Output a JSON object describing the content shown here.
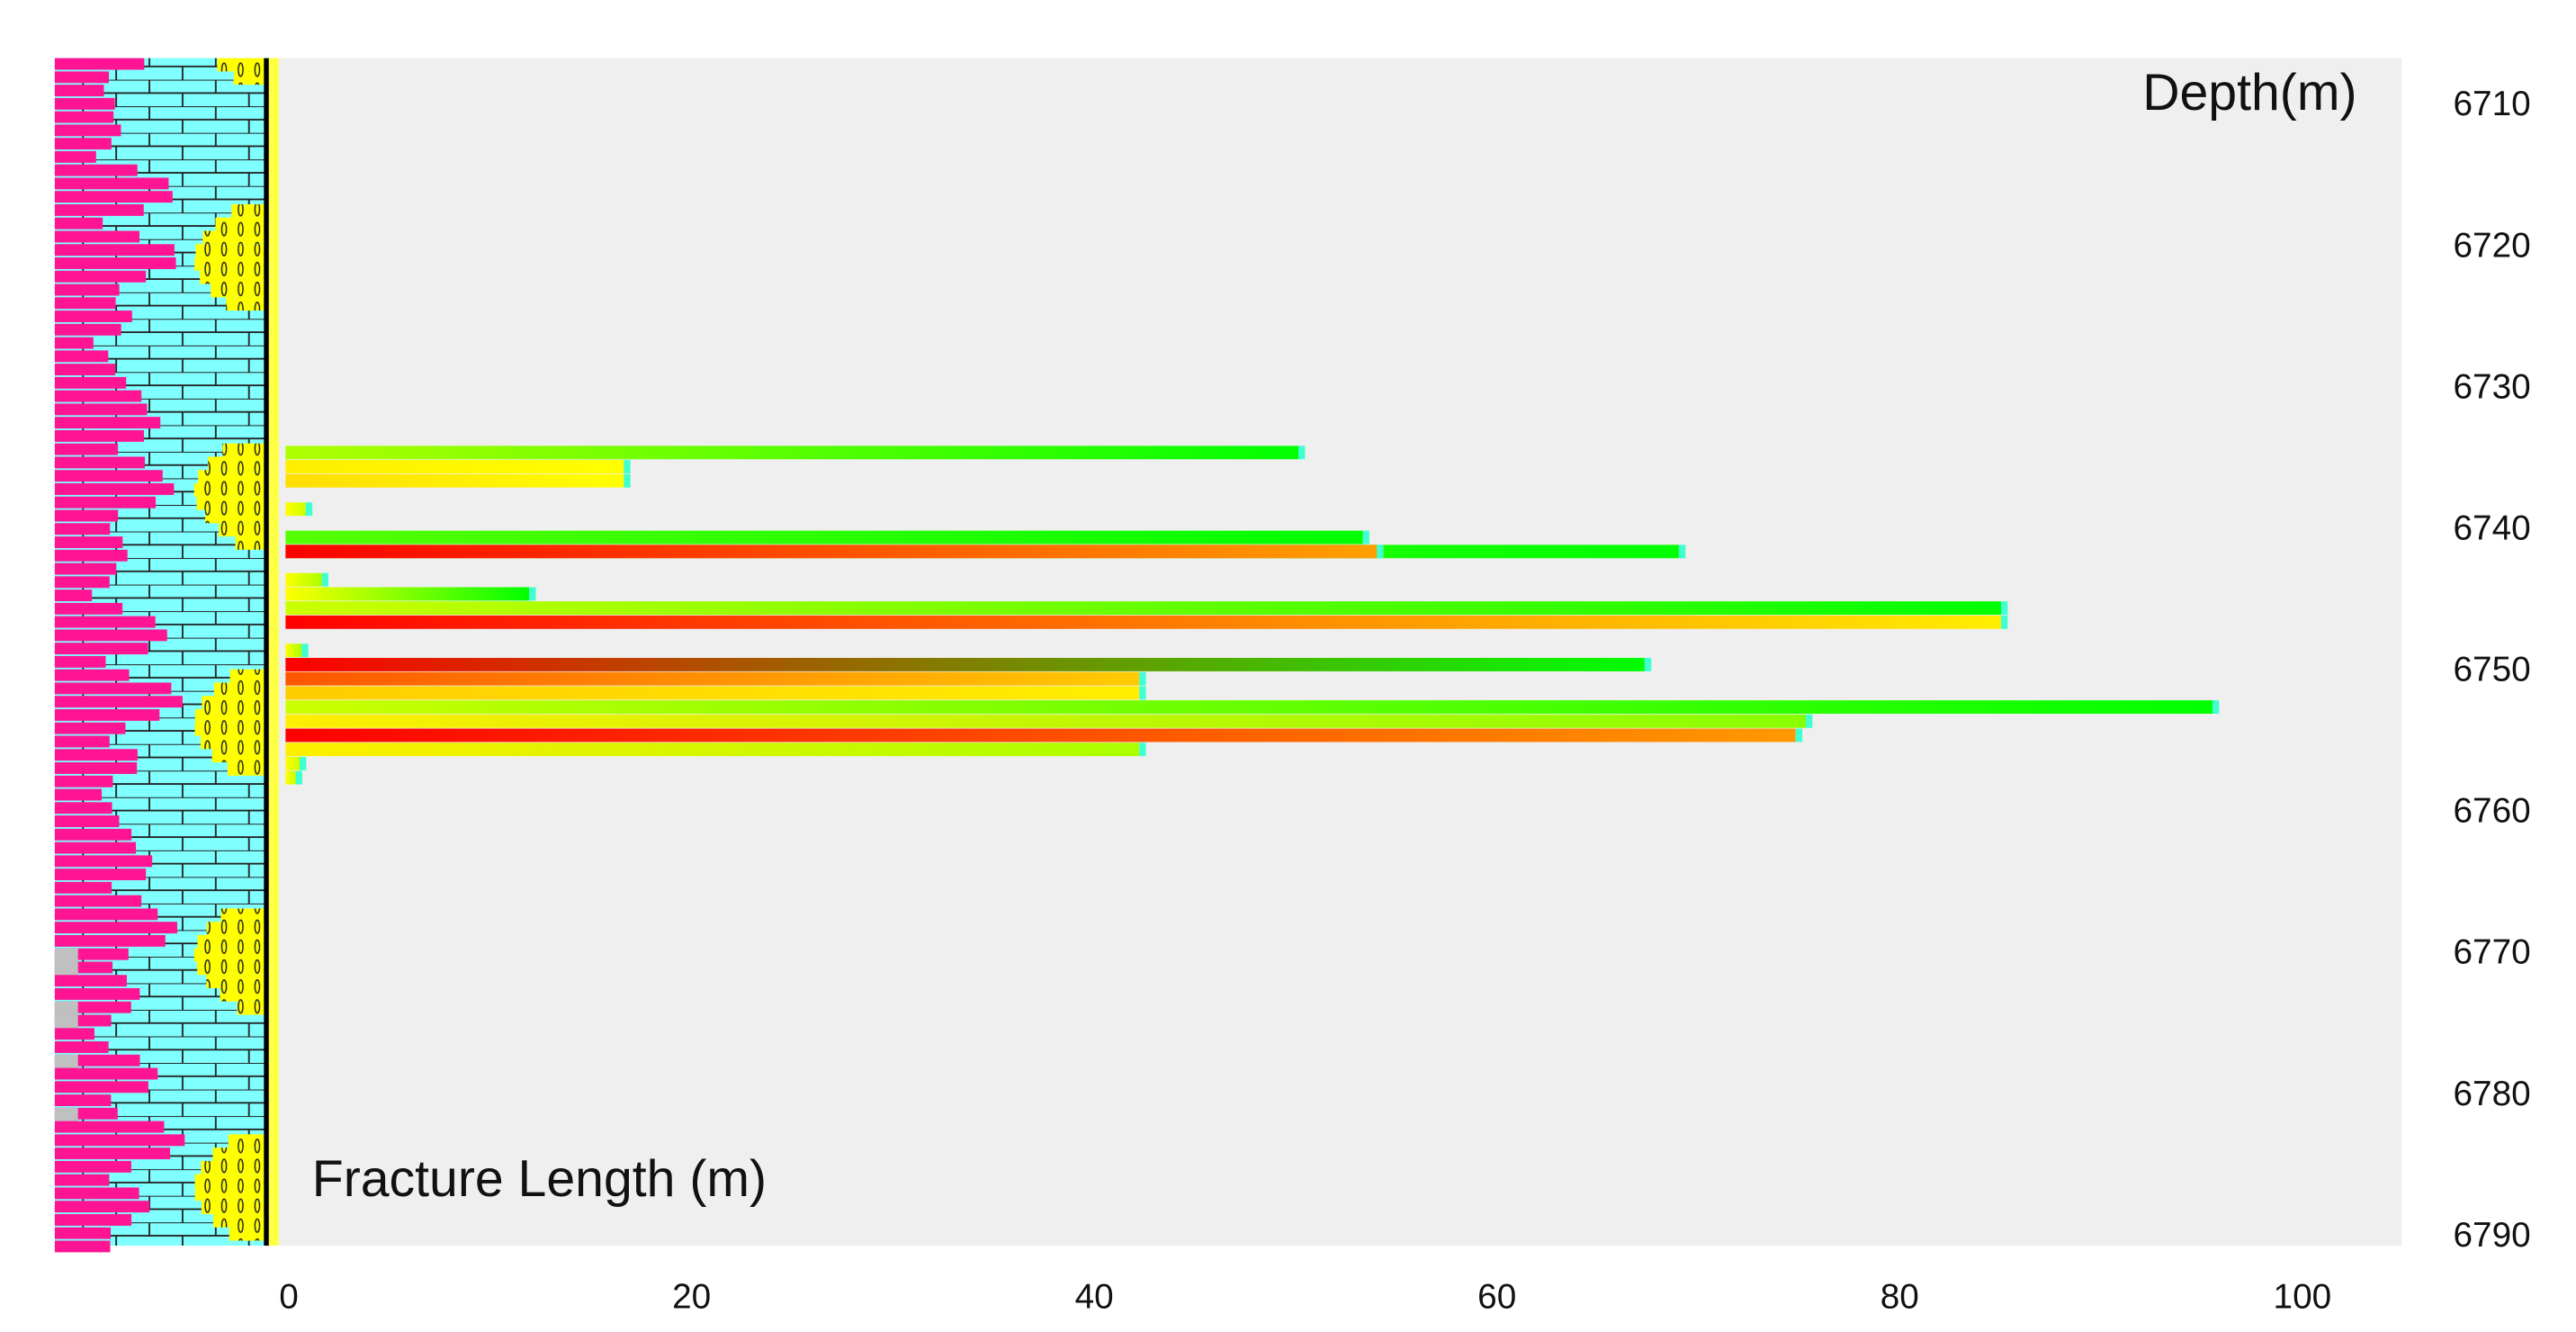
{
  "chart_data": {
    "type": "hbar",
    "y_annotation": "Depth(m)",
    "x_annotation": "Fracture Length (m)",
    "y": [
      6734.5,
      6735.5,
      6736.5,
      6738.5,
      6740.5,
      6741.5,
      6741.5,
      6743.5,
      6744.5,
      6745.5,
      6746.5,
      6748.5,
      6749.5,
      6750.5,
      6751.5,
      6752.5,
      6753.5,
      6754.5,
      6755.5,
      6756.5,
      6757.5
    ],
    "values": [
      50.3,
      16.8,
      16.8,
      1.0,
      53.5,
      69.2,
      54.2,
      1.8,
      12.1,
      85.2,
      85.2,
      0.8,
      67.5,
      42.4,
      42.4,
      95.7,
      75.5,
      75.0,
      42.4,
      0.7,
      0.5
    ],
    "colors": [
      [
        "#b0ff00",
        "#00ff00"
      ],
      [
        "#ffee00",
        "#ffff00"
      ],
      [
        "#ffdd00",
        "#ffff00"
      ],
      [
        "#ffff00",
        "#ccff00"
      ],
      [
        "#55ff00",
        "#00ff00"
      ],
      [
        "#66ff00",
        "#00ff00"
      ],
      [
        "#ff0000",
        "#ffa000"
      ],
      [
        "#ffff00",
        "#aaff00"
      ],
      [
        "#ffff00",
        "#00ff00"
      ],
      [
        "#ccff00",
        "#00ff00"
      ],
      [
        "#ff0000",
        "#ffee00"
      ],
      [
        "#ffff00",
        "#aaff00"
      ],
      [
        "#ff0000",
        "#00ff00"
      ],
      [
        "#ff5500",
        "#ffcc00"
      ],
      [
        "#ffcc00",
        "#ffee00"
      ],
      [
        "#ccff00",
        "#00ff00"
      ],
      [
        "#ffee00",
        "#88ff00"
      ],
      [
        "#ff0000",
        "#ff9900"
      ],
      [
        "#ffee00",
        "#aaff00"
      ],
      [
        "#ffff00",
        "#ccff00"
      ],
      [
        "#ffff00",
        "#ccff00"
      ]
    ],
    "xlim": [
      -0.58,
      105.1
    ],
    "xticks": [
      0,
      20,
      40,
      60,
      80,
      100
    ],
    "ylim": [
      6706.6,
      6790.6
    ],
    "yticks": [
      6710,
      6720,
      6730,
      6740,
      6750,
      6760,
      6770,
      6780,
      6790
    ],
    "background": "#efefef"
  }
}
